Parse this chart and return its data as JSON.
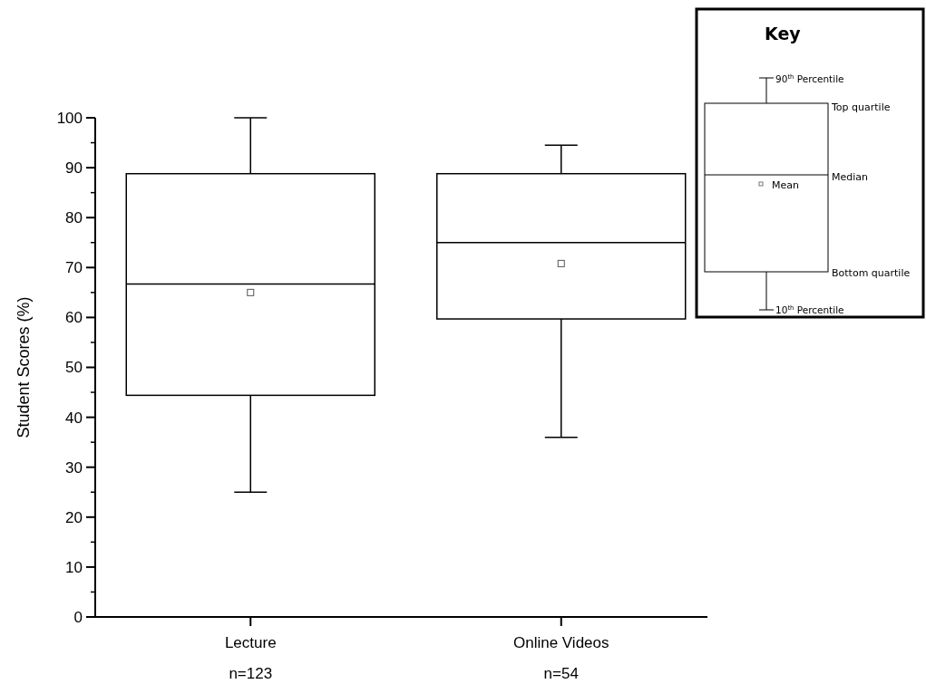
{
  "chart_data": {
    "type": "box",
    "ylabel": "Student Scores (%)",
    "categories": [
      "Lecture",
      "Online Videos"
    ],
    "boxes": [
      {
        "low": 25,
        "q1": 44.4,
        "median": 66.7,
        "q3": 88.8,
        "high": 100,
        "mean": 65
      },
      {
        "low": 36,
        "q1": 59.7,
        "median": 75,
        "q3": 88.8,
        "high": 94.5,
        "mean": 70.8
      }
    ],
    "ylim": [
      0,
      100
    ],
    "yticks": [
      0,
      10,
      20,
      30,
      40,
      50,
      60,
      70,
      80,
      90,
      100
    ],
    "marker": "square",
    "grid": false,
    "annotations": [
      "n=123",
      "n=54",
      "Key",
      "90$^{th}$ Percentile",
      "Top quartile",
      "Median",
      "Mean",
      "Bottom quartile",
      "10$^{th}$ Percentile"
    ]
  }
}
